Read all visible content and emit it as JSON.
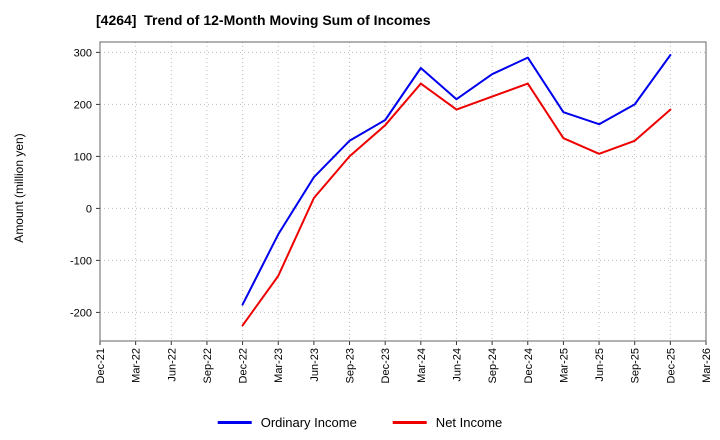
{
  "title": "[4264]  Trend of 12-Month Moving Sum of Incomes",
  "ylabel": "Amount (million yen)",
  "chart_data": {
    "type": "line",
    "categories": [
      "Dec-21",
      "Mar-22",
      "Jun-22",
      "Sep-22",
      "Dec-22",
      "Mar-23",
      "Jun-23",
      "Sep-23",
      "Dec-23",
      "Mar-24",
      "Jun-24",
      "Sep-24",
      "Dec-24",
      "Mar-25",
      "Jun-25",
      "Sep-25",
      "Dec-25",
      "Mar-26"
    ],
    "series": [
      {
        "name": "Ordinary Income",
        "color": "#0000ee",
        "values": [
          null,
          null,
          null,
          null,
          -185,
          -50,
          60,
          130,
          170,
          270,
          210,
          258,
          290,
          185,
          162,
          200,
          295,
          null
        ]
      },
      {
        "name": "Net Income",
        "color": "#ee0000",
        "values": [
          null,
          null,
          null,
          null,
          -225,
          -130,
          20,
          100,
          160,
          240,
          190,
          215,
          240,
          135,
          105,
          130,
          190,
          null
        ]
      }
    ],
    "yticks": [
      -200,
      -100,
      0,
      100,
      200,
      300
    ],
    "ylim": [
      -255,
      320
    ],
    "grid": true,
    "legend_position": "bottom",
    "title": "[4264]  Trend of 12-Month Moving Sum of Incomes",
    "xlabel": "",
    "ylabel": "Amount (million yen)"
  },
  "style": {
    "grid_color": "#bbbbbb",
    "frame_color": "#666666",
    "tick_color": "#333333",
    "background": "#ffffff"
  }
}
